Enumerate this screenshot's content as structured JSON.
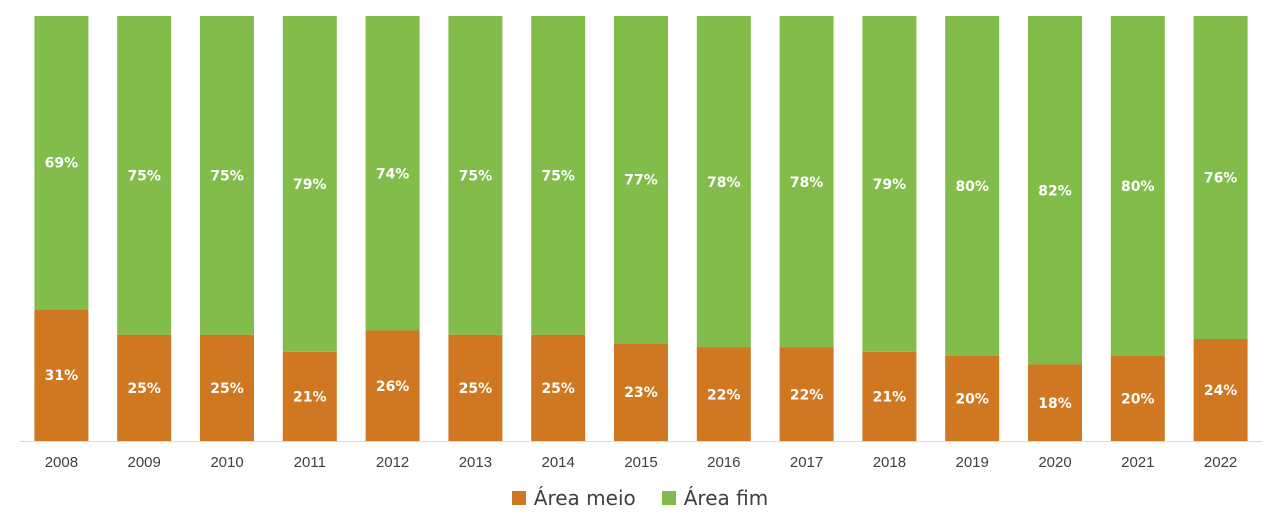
{
  "chart_data": {
    "type": "bar",
    "stacked": true,
    "percent": true,
    "categories": [
      "2008",
      "2009",
      "2010",
      "2011",
      "2012",
      "2013",
      "2014",
      "2015",
      "2016",
      "2017",
      "2018",
      "2019",
      "2020",
      "2021",
      "2022"
    ],
    "series": [
      {
        "name": "Área meio",
        "color": "#CF7721",
        "values": [
          31,
          25,
          25,
          21,
          26,
          25,
          25,
          23,
          22,
          22,
          21,
          20,
          18,
          20,
          24
        ],
        "labels": [
          "31%",
          "25%",
          "25%",
          "21%",
          "26%",
          "25%",
          "25%",
          "23%",
          "22%",
          "22%",
          "21%",
          "20%",
          "18%",
          "20%",
          "24%"
        ]
      },
      {
        "name": "Área fim",
        "color": "#82BC4A",
        "values": [
          69,
          75,
          75,
          79,
          74,
          75,
          75,
          77,
          78,
          78,
          79,
          80,
          82,
          80,
          76
        ],
        "labels": [
          "69%",
          "75%",
          "75%",
          "79%",
          "74%",
          "75%",
          "75%",
          "77%",
          "78%",
          "78%",
          "79%",
          "80%",
          "82%",
          "80%",
          "76%"
        ]
      }
    ],
    "ylim": [
      0,
      100
    ],
    "grid": false,
    "legend_position": "bottom"
  }
}
